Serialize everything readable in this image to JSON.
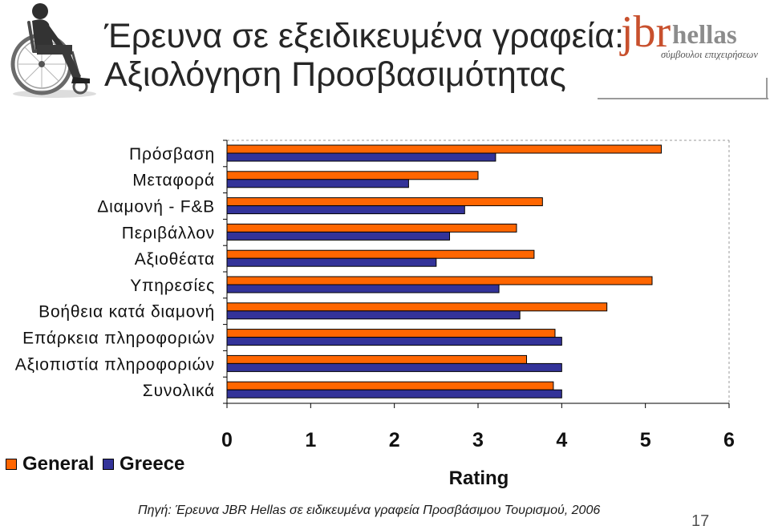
{
  "slide": {
    "title_line1": "Έρευνα σε εξειδικευμένα γραφεία:",
    "title_line2": "Αξιολόγηση Προσβασιμότητας",
    "source": "Πηγή: Έρευνα JBR Hellas σε ειδικευμένα γραφεία Προσβάσιμου Τουρισμού, 2006",
    "page_number": "17",
    "hero_icon": "wheelchair-user-icon"
  },
  "logo": {
    "brand": "jbr",
    "name": "hellas",
    "tagline": "σύμβουλοι επιχειρήσεων"
  },
  "colors": {
    "title": "#262626",
    "logo_brand": "#C8502D",
    "logo_name": "#8C8C8C",
    "rule": "#9A9A9A"
  },
  "chart_data": {
    "type": "bar",
    "orientation": "horizontal",
    "categories": [
      "Πρόσβαση",
      "Μεταφορά",
      "Διαμονή - F&B",
      "Περιβάλλον",
      "Αξιοθέατα",
      "Υπηρεσίες",
      "Βοήθεια κατά διαμονή",
      "Επάρκεια πληροφοριών",
      "Αξιοπιστία πληροφοριών",
      "Συνολικά"
    ],
    "series": [
      {
        "name": "General",
        "color": "#FF6600",
        "values": [
          5.19,
          3.0,
          3.77,
          3.46,
          3.67,
          5.08,
          4.54,
          3.92,
          3.58,
          3.9
        ]
      },
      {
        "name": "Greece",
        "color": "#333399",
        "values": [
          3.21,
          2.17,
          2.84,
          2.66,
          2.5,
          3.25,
          3.5,
          4.0,
          4.0,
          4.0
        ]
      }
    ],
    "xlabel": "Rating",
    "xlim": [
      0,
      6
    ],
    "xticks": [
      0,
      1,
      2,
      3,
      4,
      5,
      6
    ],
    "grid": false,
    "legend_position": "bottom-left"
  }
}
